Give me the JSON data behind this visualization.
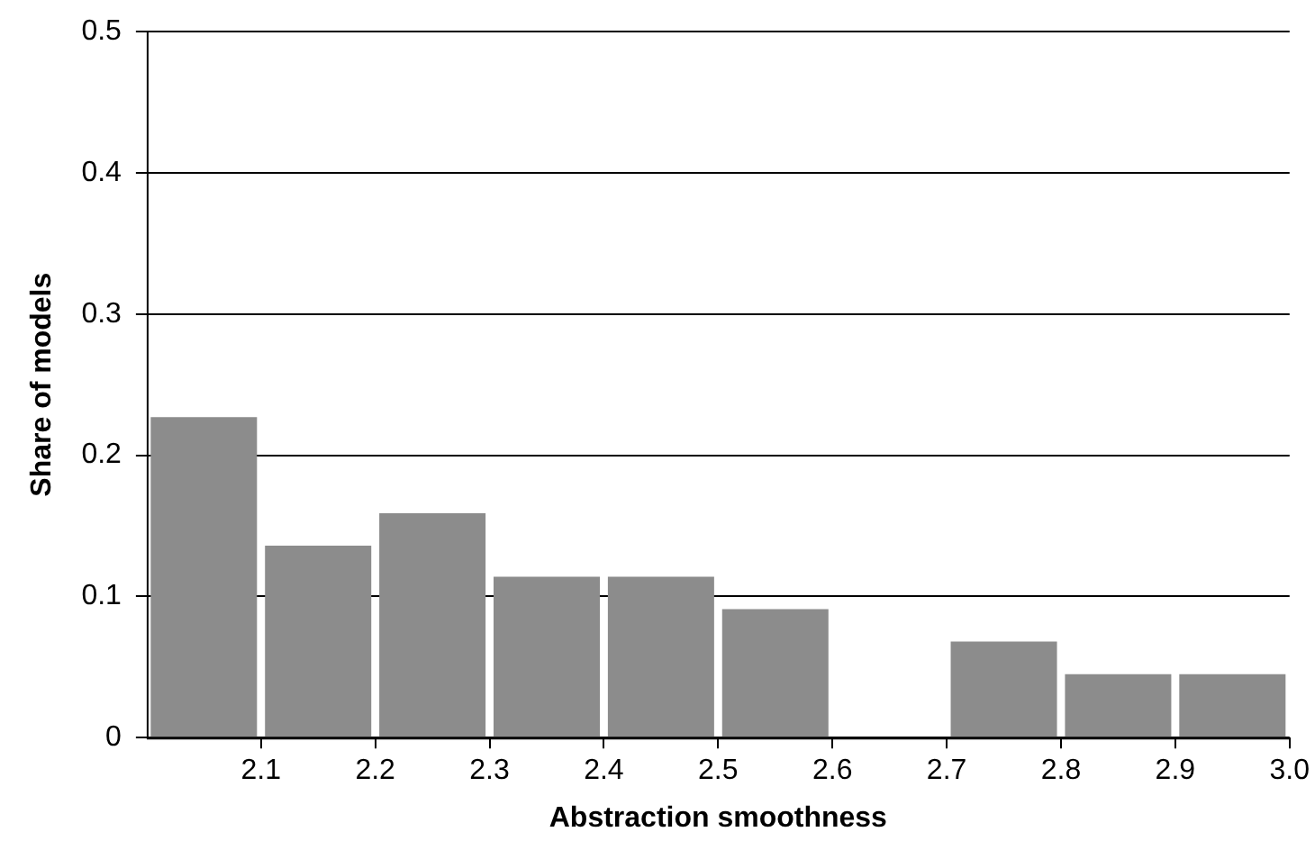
{
  "chart_data": {
    "type": "histogram",
    "xlabel": "Abstraction smoothness",
    "ylabel": "Share of models",
    "bins": [
      2.0,
      2.1,
      2.2,
      2.3,
      2.4,
      2.5,
      2.6,
      2.7,
      2.8,
      2.9,
      3.0
    ],
    "values": [
      0.227,
      0.136,
      0.159,
      0.114,
      0.114,
      0.091,
      0,
      0.068,
      0.045,
      0.045
    ],
    "color": "#8c8c8c",
    "xlim": [
      2.0,
      3.0
    ],
    "xticks": [
      2.1,
      2.2,
      2.3,
      2.4,
      2.5,
      2.6,
      2.7,
      2.8,
      2.9,
      {
        "value": 3.0,
        "label": "3.0"
      }
    ],
    "ylim": [
      0,
      0.5
    ],
    "yticks": [
      0,
      0.1,
      0.2,
      0.3,
      0.4,
      0.5
    ],
    "grid": "y",
    "legend": false
  }
}
